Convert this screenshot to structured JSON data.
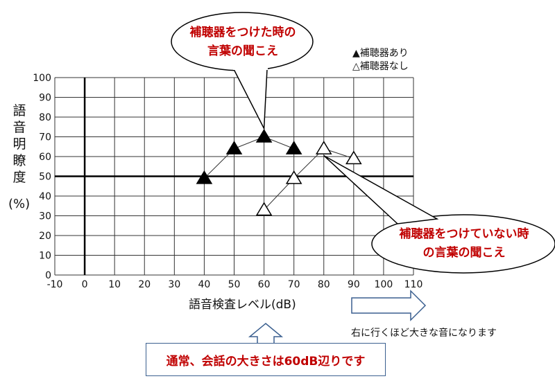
{
  "chart_data": {
    "type": "scatter",
    "xlabel": "語音検査レベル(dB)",
    "ylabel": "語音明瞭度",
    "ylabel_unit": "(%)",
    "xlim": [
      -10,
      110
    ],
    "ylim": [
      0,
      100
    ],
    "x_ticks": [
      -10,
      0,
      10,
      20,
      30,
      40,
      50,
      60,
      70,
      80,
      90,
      100,
      110
    ],
    "y_ticks": [
      0,
      10,
      20,
      30,
      40,
      50,
      60,
      70,
      80,
      90,
      100
    ],
    "grid": true,
    "reference_lines": {
      "x": 0,
      "y": 50
    },
    "series": [
      {
        "name": "補聴器あり",
        "marker": "filled-triangle",
        "x": [
          40,
          50,
          60,
          70
        ],
        "y": [
          49,
          64,
          70,
          64
        ]
      },
      {
        "name": "補聴器なし",
        "marker": "open-triangle",
        "x": [
          60,
          70,
          80,
          90
        ],
        "y": [
          33,
          49,
          64,
          59
        ]
      }
    ],
    "legend": [
      "▲補聴器あり",
      "△補聴器なし"
    ],
    "legend_position": "top-right"
  },
  "callouts": {
    "with_aid": [
      "補聴器をつけた時の",
      "言葉の聞こえ"
    ],
    "without_aid": [
      "補聴器をつけていない時",
      "の言葉の聞こえ"
    ],
    "direction_note": "右に行くほど大きな音になります",
    "conversation_note": "通常、会話の大きさは60dB辺りです"
  },
  "colors": {
    "callout_text": "#c00000",
    "arrow": "#3a5f8f"
  }
}
